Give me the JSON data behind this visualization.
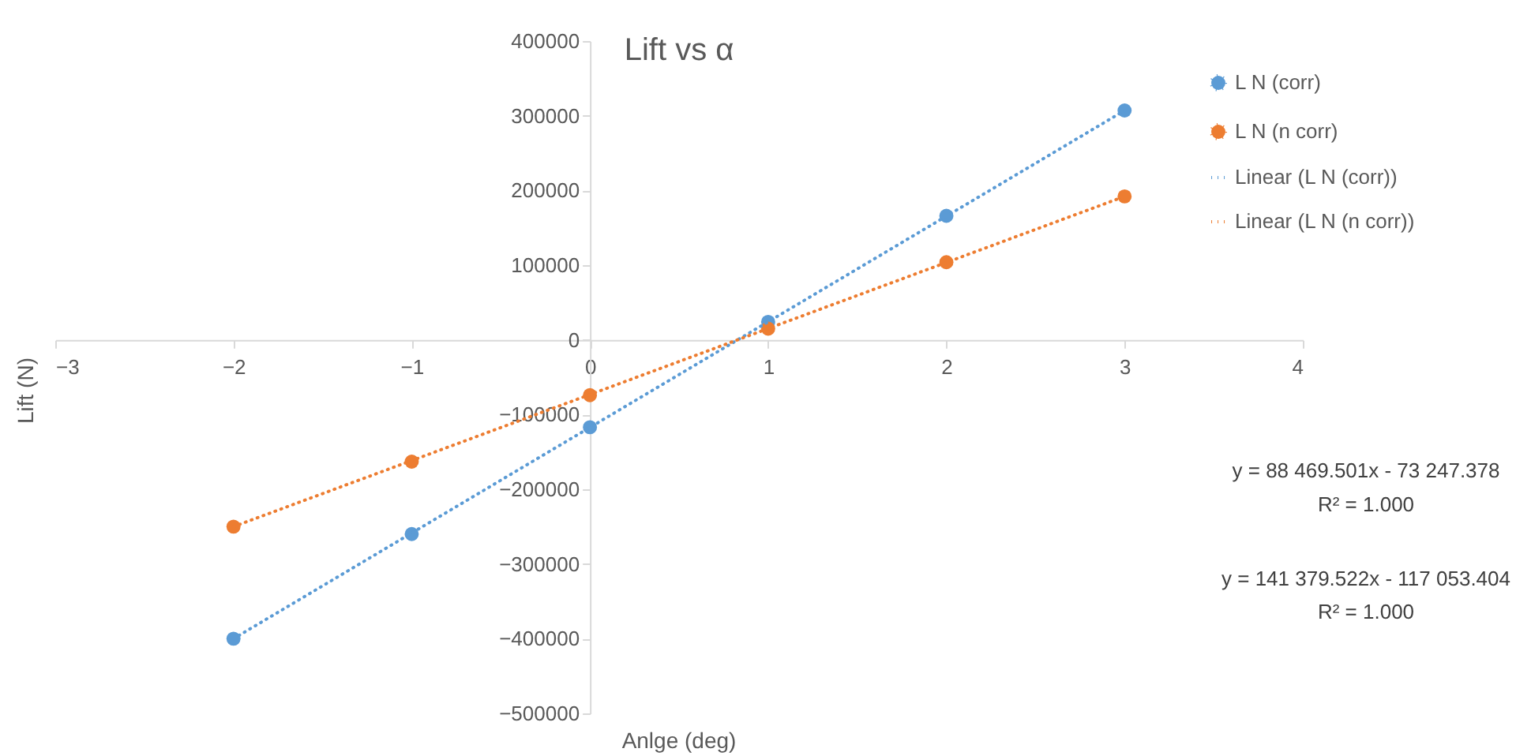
{
  "chart_data": {
    "type": "scatter",
    "title": "Lift vs α",
    "xlabel": "Anlge (deg)",
    "ylabel": "Lift (N)",
    "xlim": [
      -3,
      4
    ],
    "xticks": [
      -3,
      -2,
      -1,
      0,
      1,
      2,
      3,
      4
    ],
    "ylim": [
      -500000,
      400000
    ],
    "yticks": [
      -500000,
      -400000,
      -300000,
      -200000,
      -100000,
      0,
      100000,
      200000,
      300000,
      400000
    ],
    "grid": false,
    "legend": "right",
    "annotations": [
      "y = 88 469.501x - 73 247.378",
      "R² = 1.000",
      "y = 141 379.522x - 117 053.404",
      "R² = 1.000"
    ],
    "series": [
      {
        "name": "L N (corr)",
        "marker": "circle",
        "color": "#5b9bd5",
        "x": [
          -2,
          -1,
          0,
          1,
          2,
          3
        ],
        "values": [
          -400000,
          -260000,
          -117000,
          24000,
          166000,
          307000
        ]
      },
      {
        "name": "L N (n corr)",
        "marker": "circle",
        "color": "#ed7d31",
        "x": [
          -2,
          -1,
          0,
          1,
          2,
          3
        ],
        "values": [
          -250000,
          -163000,
          -74000,
          15000,
          104000,
          192000
        ]
      },
      {
        "name": "Linear (L N (corr))",
        "type": "line",
        "line_style": "dotted",
        "color": "#5b9bd5",
        "x": [
          -2,
          3
        ],
        "values": [
          -400000,
          307000
        ]
      },
      {
        "name": "Linear (L N (n corr))",
        "type": "line",
        "line_style": "dotted",
        "color": "#ed7d31",
        "x": [
          -2,
          3
        ],
        "values": [
          -250000,
          192000
        ]
      }
    ]
  }
}
